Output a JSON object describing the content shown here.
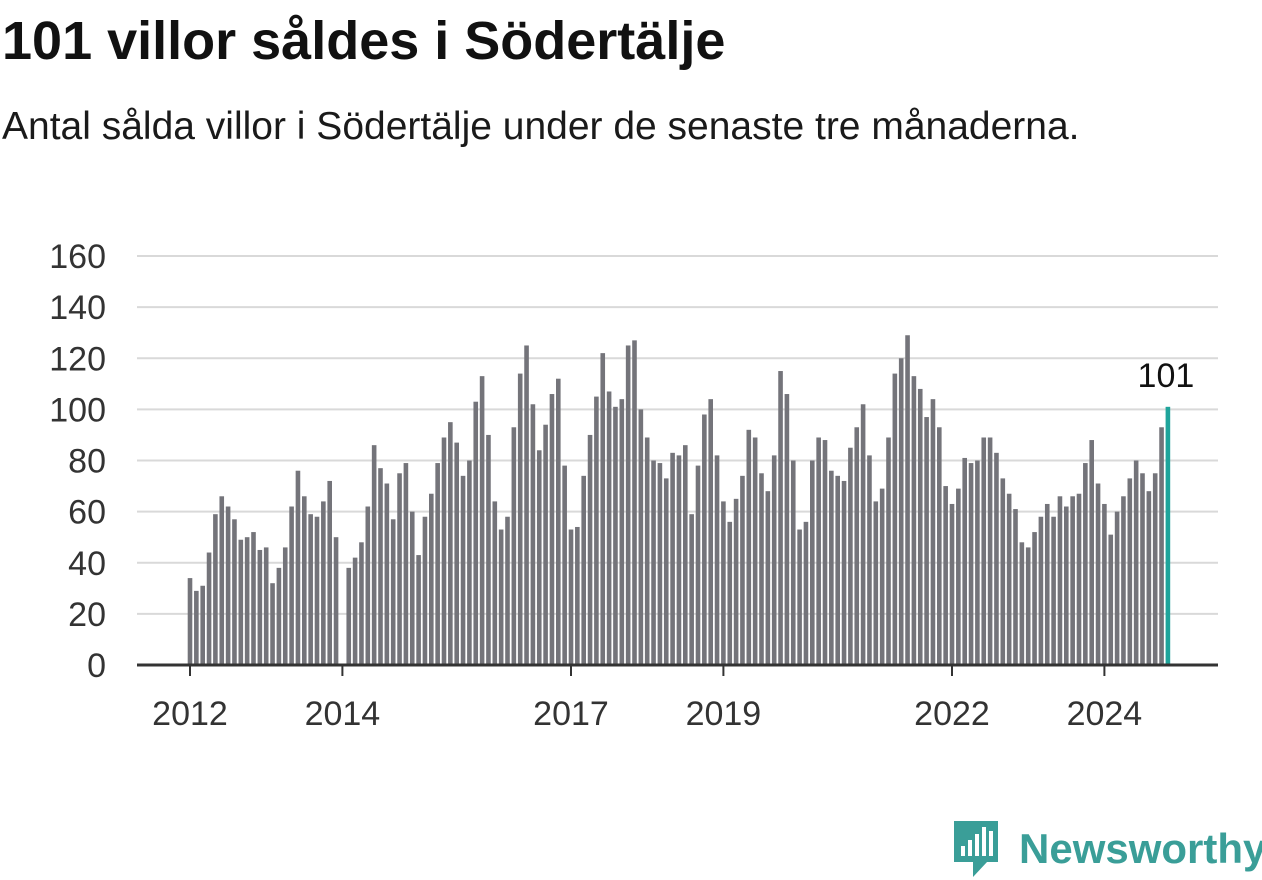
{
  "header": {
    "title": "101 villor såldes i Södertälje",
    "subtitle": "Antal sålda villor i Södertälje under de senaste tre månaderna."
  },
  "brand": {
    "name": "Newsworthy",
    "color": "#3a9e98",
    "icon": "newsworthy-logo-icon"
  },
  "colors": {
    "bar": "#74747a",
    "highlight": "#1fa49b",
    "grid": "#d9d9d9",
    "axis": "#333333"
  },
  "chart_data": {
    "type": "bar",
    "title": "101 villor såldes i Södertälje",
    "subtitle": "Antal sålda villor i Södertälje under de senaste tre månaderna.",
    "ylim": [
      0,
      160
    ],
    "yticks": [
      0,
      20,
      40,
      60,
      80,
      100,
      120,
      140,
      160
    ],
    "xticks": [
      "2012",
      "2014",
      "2017",
      "2019",
      "2022",
      "2024"
    ],
    "grid": true,
    "x_start": "2012-01",
    "frequency": "monthly",
    "values": [
      34,
      29,
      31,
      44,
      59,
      66,
      62,
      57,
      49,
      50,
      52,
      45,
      46,
      32,
      38,
      46,
      62,
      76,
      66,
      59,
      58,
      64,
      72,
      50,
      null,
      38,
      42,
      48,
      62,
      86,
      77,
      71,
      57,
      75,
      79,
      60,
      43,
      58,
      67,
      79,
      89,
      95,
      87,
      74,
      80,
      103,
      113,
      90,
      64,
      53,
      58,
      93,
      114,
      125,
      102,
      84,
      94,
      106,
      112,
      78,
      53,
      54,
      74,
      90,
      105,
      122,
      107,
      101,
      104,
      125,
      127,
      100,
      89,
      80,
      79,
      73,
      83,
      82,
      86,
      59,
      78,
      98,
      104,
      82,
      64,
      56,
      65,
      74,
      92,
      89,
      75,
      68,
      82,
      115,
      106,
      80,
      53,
      56,
      80,
      89,
      88,
      76,
      74,
      72,
      85,
      93,
      102,
      82,
      64,
      69,
      89,
      114,
      120,
      129,
      113,
      108,
      97,
      104,
      93,
      70,
      63,
      69,
      81,
      79,
      80,
      89,
      89,
      83,
      73,
      67,
      61,
      48,
      46,
      52,
      58,
      63,
      58,
      66,
      62,
      66,
      67,
      79,
      88,
      71,
      63,
      51,
      60,
      66,
      73,
      80,
      75,
      68,
      75,
      93,
      101
    ],
    "highlight_last": true,
    "annotations": [
      {
        "label": "101",
        "value": 101,
        "position": "last"
      }
    ]
  }
}
